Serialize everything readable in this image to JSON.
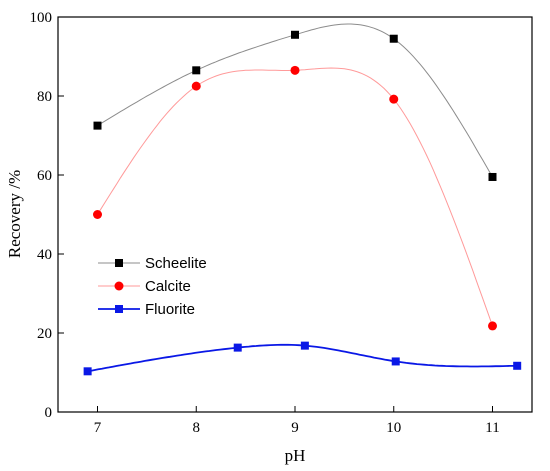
{
  "chart_data": {
    "type": "scatter",
    "xlabel": "pH",
    "ylabel": "Recovery /%",
    "xlim": [
      6.6,
      11.4
    ],
    "ylim": [
      0,
      100
    ],
    "x_ticks": [
      7,
      8,
      9,
      10,
      11
    ],
    "y_ticks": [
      0,
      20,
      40,
      60,
      80,
      100
    ],
    "legend_position": "middle-left",
    "series": [
      {
        "name": "Scheelite",
        "marker": "square",
        "color": "#000000",
        "line_color": "#8c8c8c",
        "x": [
          7,
          8,
          9,
          10,
          11
        ],
        "y": [
          72.5,
          86.5,
          95.5,
          94.5,
          59.5
        ]
      },
      {
        "name": "Calcite",
        "marker": "circle",
        "color": "#ff0000",
        "line_color": "#ff9a9a",
        "x": [
          7,
          8,
          9,
          10,
          11
        ],
        "y": [
          50,
          82.5,
          86.5,
          79.2,
          21.8
        ]
      },
      {
        "name": "Fluorite",
        "marker": "square",
        "color": "#0a18e6",
        "line_color": "#0a18e6",
        "x": [
          6.9,
          8.42,
          9.1,
          10.02,
          11.25
        ],
        "y": [
          10.3,
          16.3,
          16.8,
          12.8,
          11.7
        ]
      }
    ]
  }
}
